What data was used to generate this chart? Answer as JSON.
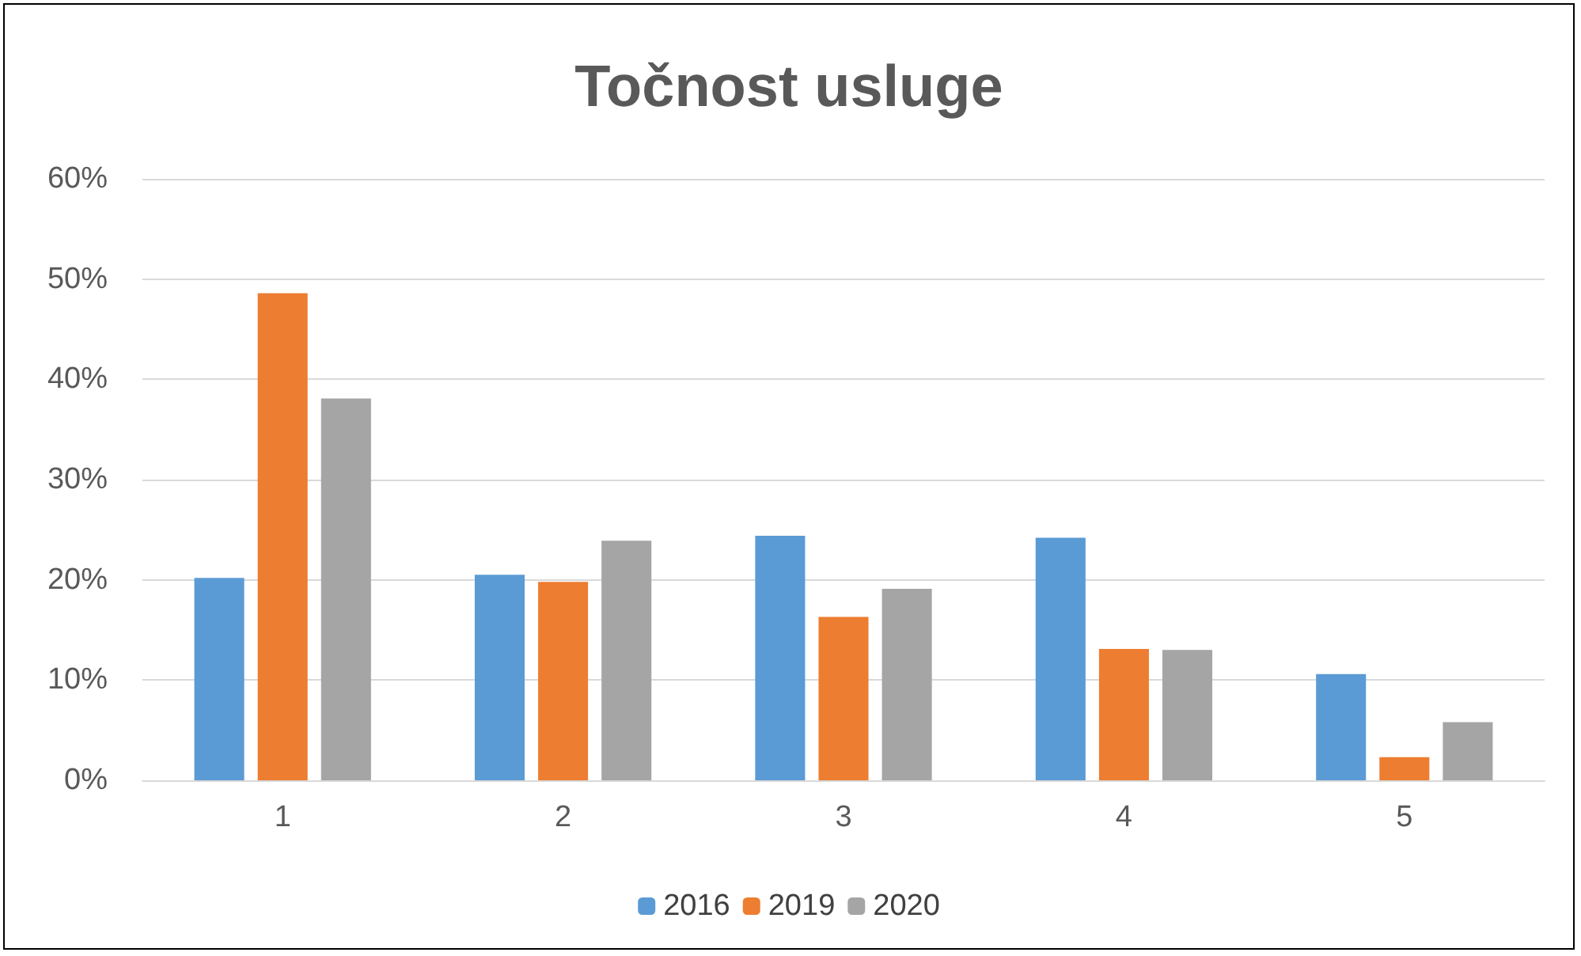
{
  "chart_data": {
    "type": "bar",
    "title": "Točnost usluge",
    "categories": [
      "1",
      "2",
      "3",
      "4",
      "5"
    ],
    "series": [
      {
        "name": "2016",
        "color": "#5b9bd5",
        "values": [
          20.2,
          20.5,
          24.4,
          24.2,
          10.6
        ]
      },
      {
        "name": "2019",
        "color": "#ed7d31",
        "values": [
          48.6,
          19.8,
          16.3,
          13.1,
          2.3
        ]
      },
      {
        "name": "2020",
        "color": "#a5a5a5",
        "values": [
          38.1,
          23.9,
          19.1,
          13.0,
          5.8
        ]
      }
    ],
    "ylim": [
      0,
      60
    ],
    "yticks": [
      {
        "value": 0,
        "label": "0%"
      },
      {
        "value": 10,
        "label": "10%"
      },
      {
        "value": 20,
        "label": "20%"
      },
      {
        "value": 30,
        "label": "30%"
      },
      {
        "value": 40,
        "label": "40%"
      },
      {
        "value": 50,
        "label": "50%"
      },
      {
        "value": 60,
        "label": "60%"
      }
    ],
    "grid": "y",
    "legend": "bottom"
  }
}
